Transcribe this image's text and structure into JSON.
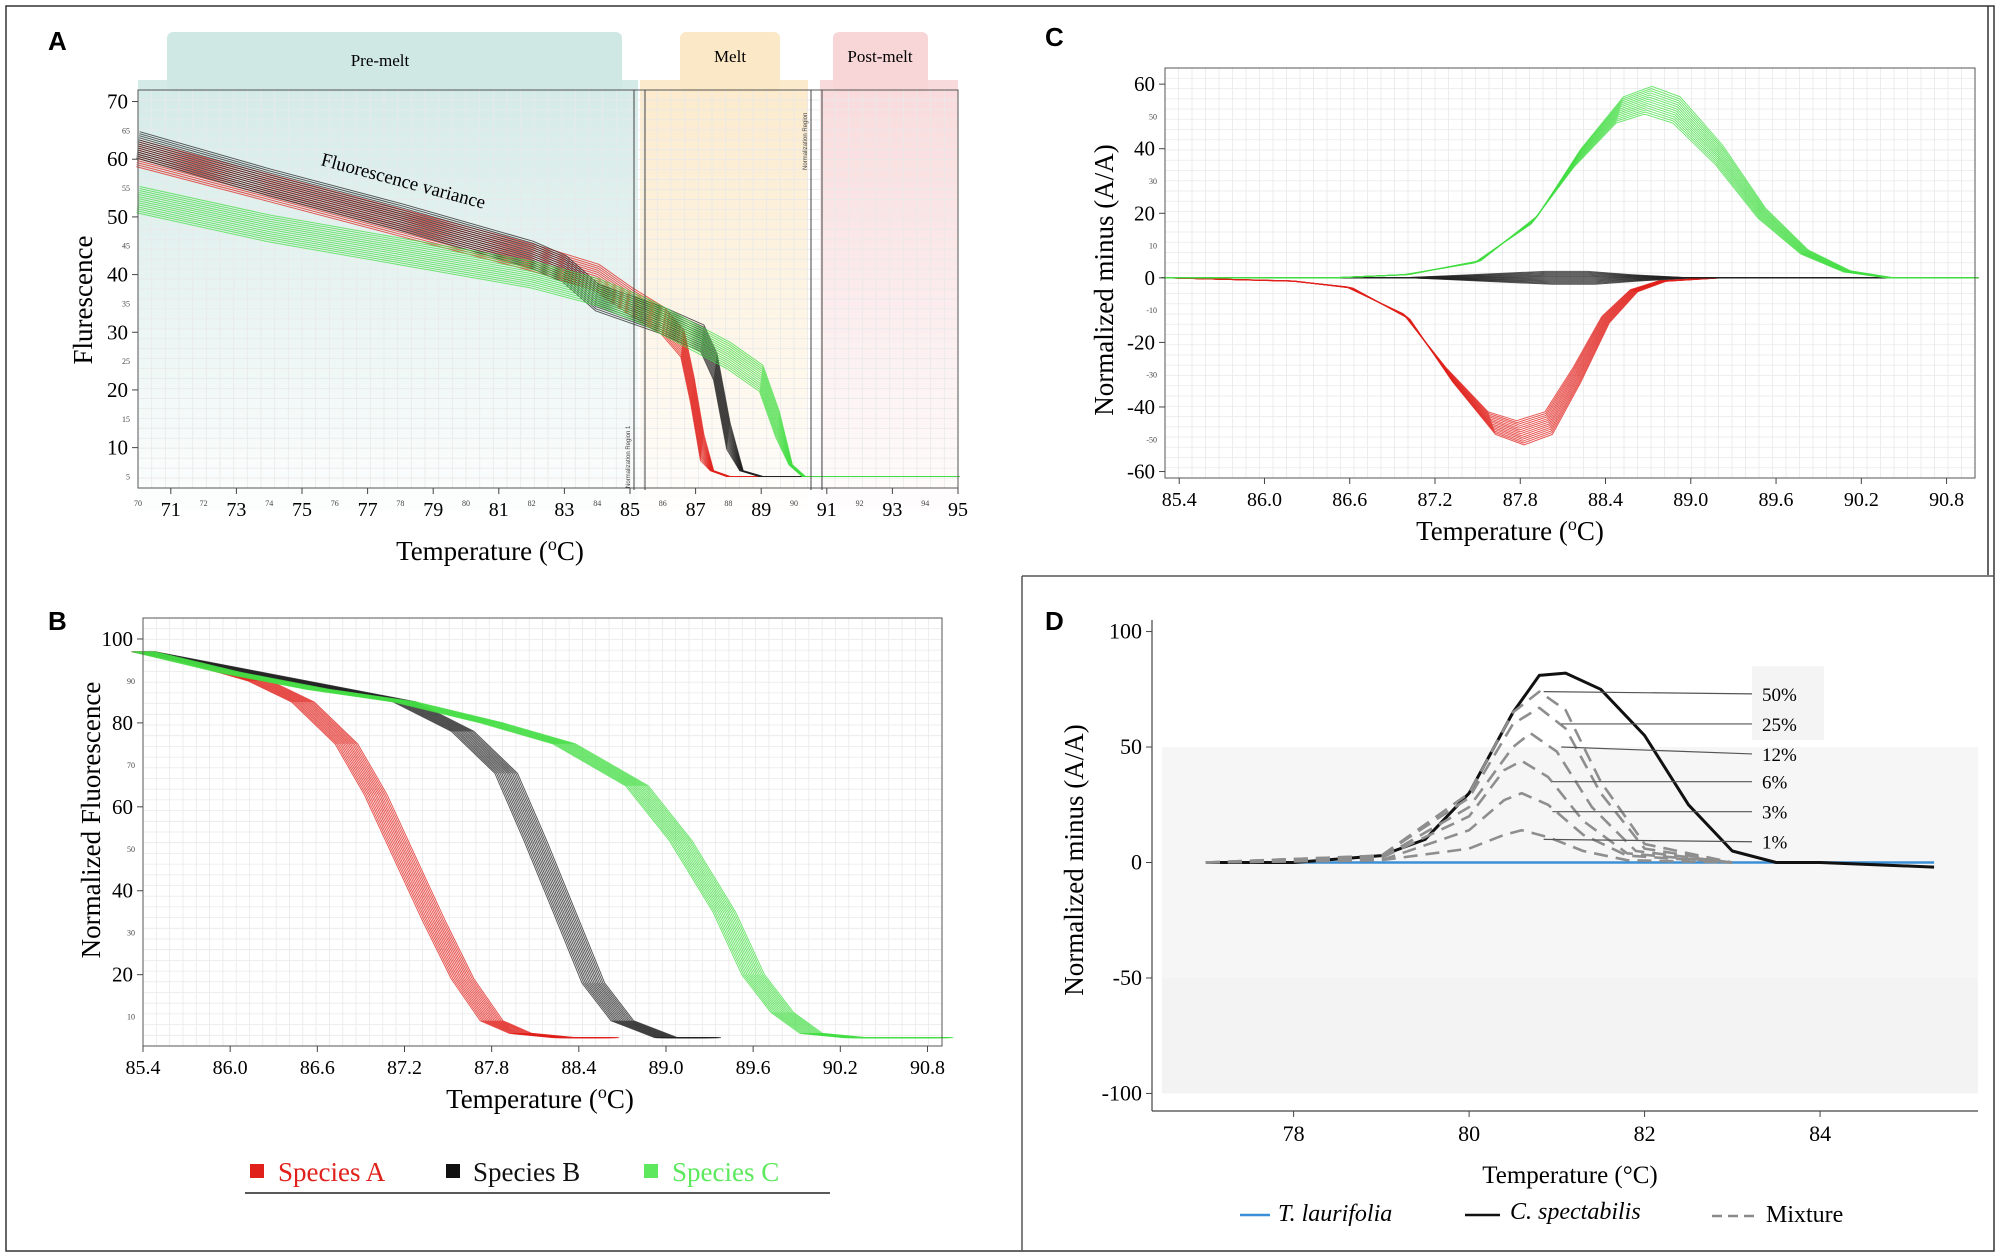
{
  "colors": {
    "species_a": "#e0201b",
    "species_b": "#222222",
    "species_c": "#44dd44",
    "premelt_band": "#cfe8e4",
    "melt_band": "#fbe8c6",
    "postmelt_band": "#f8d6d8",
    "t_laurifolia": "#3a8fd6",
    "mixture": "#8a8a8a"
  },
  "panels": {
    "a": {
      "letter": "A",
      "premelt": "Pre-melt",
      "melt": "Melt",
      "postmelt": "Post-melt",
      "annotation": "Fluorescence variance",
      "region1": "Normalization Region 1",
      "region2": "Normalization Region",
      "xlabel": "Temperature",
      "ylabel": "Flurescence"
    },
    "b": {
      "letter": "B",
      "xlabel": "Temperature",
      "ylabel": "Normalized Fluorescence"
    },
    "c": {
      "letter": "C",
      "xlabel": "Temperature",
      "ylabel": "Normalized minus (A/A)"
    },
    "d": {
      "letter": "D",
      "xlabel": "Temperature (°C)",
      "ylabel": "Normalized minus (A/A)"
    }
  },
  "unit": {
    "degree": "o",
    "c": "C"
  },
  "legend_b": {
    "species_a": "Species A",
    "species_b": "Species B",
    "species_c": "Species C"
  },
  "legend_d": {
    "t_laurifolia": "T. laurifolia",
    "c_spectabilis": "C. spectabilis",
    "mixture": "Mixture"
  },
  "chart_data": [
    {
      "id": "A",
      "type": "line",
      "title": "",
      "xlabel": "Temperature (oC)",
      "ylabel": "Flurescence",
      "xlim": [
        70,
        95
      ],
      "ylim": [
        3,
        72
      ],
      "xticks_major": [
        "71",
        "73",
        "75",
        "77",
        "79",
        "81",
        "83",
        "85",
        "87",
        "89",
        "91",
        "93",
        "95"
      ],
      "xticks_minor": [
        "70",
        "72",
        "74",
        "76",
        "78",
        "80",
        "82",
        "84",
        "86",
        "88",
        "90",
        "92",
        "94"
      ],
      "yticks_major": [
        "10",
        "20",
        "30",
        "40",
        "50",
        "60",
        "70"
      ],
      "yticks_minor": [
        "5",
        "15",
        "25",
        "35",
        "45",
        "55",
        "65"
      ],
      "regions": [
        {
          "name": "Pre-melt",
          "from": 70,
          "to": 85.2
        },
        {
          "name": "Melt",
          "from": 85.6,
          "to": 90.9
        },
        {
          "name": "Post-melt",
          "from": 91.2,
          "to": 95
        }
      ],
      "series": [
        {
          "name": "Species A",
          "x": [
            70,
            74,
            78,
            82,
            84,
            85,
            86,
            86.6,
            86.9,
            87.2,
            87.5,
            88,
            89,
            95
          ],
          "y": [
            61,
            55,
            49,
            43,
            39.5,
            35.5,
            32,
            28,
            20,
            10,
            6,
            5,
            5,
            5
          ]
        },
        {
          "name": "Species B",
          "x": [
            70,
            74,
            78,
            82,
            83,
            84,
            86,
            87.2,
            87.6,
            88,
            88.4,
            89,
            90,
            95
          ],
          "y": [
            62.5,
            56,
            50,
            43.5,
            41,
            36,
            32,
            29,
            24,
            12,
            6,
            5,
            5,
            5
          ]
        },
        {
          "name": "Species C",
          "x": [
            70,
            74,
            78,
            82,
            84,
            85.5,
            87,
            88,
            89,
            89.5,
            89.9,
            90.3,
            91,
            95
          ],
          "y": [
            53,
            48,
            44,
            40,
            37,
            33.5,
            29,
            26,
            22,
            14,
            7,
            5,
            5,
            5
          ]
        }
      ]
    },
    {
      "id": "B",
      "type": "line",
      "title": "",
      "xlabel": "Temperature (oC)",
      "ylabel": "Normalized Fluorescence",
      "xlim": [
        85.4,
        90.9
      ],
      "ylim": [
        3,
        105
      ],
      "xticks_major": [
        "85.4",
        "86.0",
        "86.6",
        "87.2",
        "87.8",
        "88.4",
        "89.0",
        "89.6",
        "90.2",
        "90.8"
      ],
      "yticks_major": [
        "20",
        "40",
        "60",
        "80",
        "100"
      ],
      "yticks_minor": [
        "10",
        "30",
        "50",
        "70",
        "90"
      ],
      "series": [
        {
          "name": "Species A",
          "x": [
            85.4,
            85.8,
            86.2,
            86.5,
            86.8,
            87.0,
            87.2,
            87.4,
            87.6,
            87.8,
            88.0,
            88.3,
            88.6
          ],
          "y": [
            97,
            94,
            90,
            85,
            75,
            63,
            48,
            33,
            19,
            9,
            6,
            5,
            5
          ]
        },
        {
          "name": "Species B",
          "x": [
            85.4,
            86.0,
            86.6,
            87.2,
            87.6,
            87.9,
            88.1,
            88.3,
            88.5,
            88.7,
            89.0,
            89.3
          ],
          "y": [
            97,
            93,
            89,
            85,
            78,
            68,
            52,
            35,
            18,
            9,
            5,
            5
          ]
        },
        {
          "name": "Species C",
          "x": [
            85.4,
            86.0,
            86.6,
            87.2,
            87.8,
            88.3,
            88.8,
            89.1,
            89.4,
            89.6,
            89.8,
            90.0,
            90.3,
            90.9
          ],
          "y": [
            97,
            92,
            88,
            85,
            80,
            75,
            65,
            52,
            35,
            20,
            11,
            6,
            5,
            5
          ]
        }
      ]
    },
    {
      "id": "C",
      "type": "line",
      "title": "",
      "xlabel": "Temperature (oC)",
      "ylabel": "Normalized minus (A/A)",
      "xlim": [
        85.3,
        91.0
      ],
      "ylim": [
        -62,
        65
      ],
      "xticks_major": [
        "85.4",
        "86.0",
        "86.6",
        "87.2",
        "87.8",
        "88.4",
        "89.0",
        "89.6",
        "90.2",
        "90.8"
      ],
      "yticks_major": [
        "60",
        "40",
        "20",
        "0",
        "-20",
        "-40",
        "-60"
      ],
      "yticks_minor": [
        "50",
        "30",
        "10",
        "-10",
        "-30",
        "-50"
      ],
      "series": [
        {
          "name": "Species A",
          "x": [
            85.3,
            86.2,
            86.6,
            87.0,
            87.3,
            87.6,
            87.8,
            88.0,
            88.2,
            88.4,
            88.6,
            88.8,
            89.2,
            91.0
          ],
          "y": [
            0,
            -1,
            -3,
            -12,
            -30,
            -45,
            -48,
            -45,
            -30,
            -13,
            -4,
            -1,
            0,
            0
          ]
        },
        {
          "name": "Species B",
          "x": [
            85.3,
            87.0,
            87.5,
            88.0,
            88.3,
            88.6,
            89.0,
            91.0
          ],
          "y": [
            0,
            0,
            1,
            2,
            2,
            1,
            0,
            0
          ]
        },
        {
          "name": "Species C",
          "x": [
            85.3,
            86.5,
            87.0,
            87.5,
            87.9,
            88.2,
            88.5,
            88.7,
            88.9,
            89.2,
            89.5,
            89.8,
            90.1,
            90.4,
            91.0
          ],
          "y": [
            0,
            0,
            1,
            5,
            18,
            37,
            52,
            55,
            52,
            38,
            20,
            8,
            2,
            0,
            0
          ]
        }
      ]
    },
    {
      "id": "D",
      "type": "line",
      "title": "",
      "xlabel": "Temperature (°C)",
      "ylabel": "Normalized minus (A/A)",
      "xlim": [
        76.5,
        85.8
      ],
      "ylim": [
        -105,
        105
      ],
      "xticks_major": [
        "78",
        "80",
        "82",
        "84"
      ],
      "yticks_major": [
        "100",
        "50",
        "0",
        "-50",
        "-100"
      ],
      "annotations": [
        "50%",
        "25%",
        "12%",
        "6%",
        "3%",
        "1%"
      ],
      "series": [
        {
          "name": "T. laurifolia",
          "x": [
            77,
            85.3
          ],
          "y": [
            0,
            0
          ]
        },
        {
          "name": "C. spectabilis",
          "x": [
            77,
            78,
            79,
            79.5,
            80,
            80.5,
            80.8,
            81.1,
            81.5,
            82,
            82.5,
            83,
            83.5,
            84,
            85.3
          ],
          "y": [
            0,
            0,
            3,
            10,
            30,
            65,
            81,
            82,
            75,
            55,
            25,
            5,
            0,
            0,
            -2
          ]
        },
        {
          "name": "Mixture 50%",
          "x": [
            77,
            79,
            80,
            80.5,
            80.8,
            81.1,
            81.5,
            82,
            83
          ],
          "y": [
            0,
            3,
            30,
            65,
            74,
            66,
            35,
            8,
            0
          ]
        },
        {
          "name": "Mixture 25%",
          "x": [
            77,
            79,
            80,
            80.5,
            80.8,
            81.1,
            81.5,
            82,
            83
          ],
          "y": [
            0,
            3,
            28,
            60,
            67,
            58,
            30,
            6,
            0
          ]
        },
        {
          "name": "Mixture 12%",
          "x": [
            77,
            79,
            80,
            80.5,
            80.7,
            81.0,
            81.4,
            81.9,
            83
          ],
          "y": [
            0,
            2,
            24,
            50,
            56,
            48,
            24,
            5,
            0
          ]
        },
        {
          "name": "Mixture 6%",
          "x": [
            77,
            79,
            80,
            80.4,
            80.6,
            80.9,
            81.3,
            81.8,
            83
          ],
          "y": [
            0,
            2,
            20,
            40,
            44,
            37,
            18,
            4,
            0
          ]
        },
        {
          "name": "Mixture 3%",
          "x": [
            77,
            79,
            80,
            80.4,
            80.6,
            80.9,
            81.3,
            81.8,
            83
          ],
          "y": [
            0,
            1,
            14,
            27,
            30,
            25,
            12,
            3,
            0
          ]
        },
        {
          "name": "Mixture 1%",
          "x": [
            77,
            79,
            80,
            80.4,
            80.6,
            80.9,
            81.3,
            81.8,
            83
          ],
          "y": [
            0,
            1,
            6,
            12,
            14,
            11,
            5,
            1,
            0
          ]
        }
      ]
    }
  ]
}
